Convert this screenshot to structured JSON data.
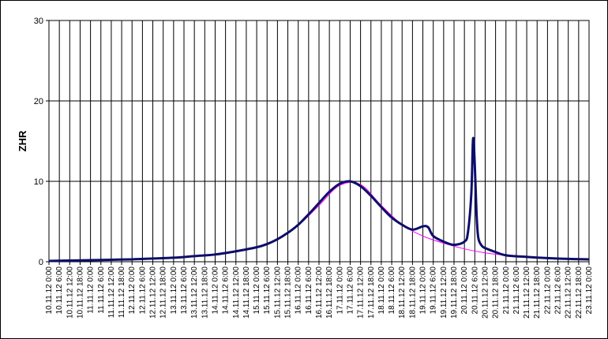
{
  "chart_data": {
    "type": "line",
    "title": "",
    "xlabel": "",
    "ylabel": "ZHR",
    "ylim": [
      0,
      30
    ],
    "yticks": [
      0,
      10,
      20,
      30
    ],
    "grid": true,
    "x_tick_interval_hours": 6,
    "x_ticks": [
      "10.11.12 0:00",
      "10.11.12 6:00",
      "10.11.12 12:00",
      "10.11.12 18:00",
      "11.11.12 0:00",
      "11.11.12 6:00",
      "11.11.12 12:00",
      "11.11.12 18:00",
      "12.11.12 0:00",
      "12.11.12 6:00",
      "12.11.12 12:00",
      "12.11.12 18:00",
      "13.11.12 0:00",
      "13.11.12 6:00",
      "13.11.12 12:00",
      "13.11.12 18:00",
      "14.11.12 0:00",
      "14.11.12 6:00",
      "14.11.12 12:00",
      "14.11.12 18:00",
      "15.11.12 0:00",
      "15.11.12 6:00",
      "15.11.12 12:00",
      "15.11.12 18:00",
      "16.11.12 0:00",
      "16.11.12 6:00",
      "16.11.12 12:00",
      "16.11.12 18:00",
      "17.11.12 0:00",
      "17.11.12 6:00",
      "17.11.12 12:00",
      "17.11.12 18:00",
      "18.11.12 0:00",
      "18.11.12 6:00",
      "18.11.12 12:00",
      "18.11.12 18:00",
      "19.11.12 0:00",
      "19.11.12 6:00",
      "19.11.12 12:00",
      "19.11.12 18:00",
      "20.11.12 0:00",
      "20.11.12 6:00",
      "20.11.12 12:00",
      "20.11.12 18:00",
      "21.11.12 0:00",
      "21.11.12 6:00",
      "21.11.12 12:00",
      "21.11.12 18:00",
      "22.11.12 0:00",
      "22.11.12 6:00",
      "22.11.12 12:00",
      "22.11.12 18:00",
      "23.11.12 0:00"
    ],
    "series": [
      {
        "color": "#0d0d6b",
        "x": [
          "10.11.12 0:00",
          "10.11.12 12:00",
          "11.11.12 0:00",
          "11.11.12 12:00",
          "12.11.12 0:00",
          "12.11.12 12:00",
          "13.11.12 0:00",
          "13.11.12 12:00",
          "14.11.12 0:00",
          "14.11.12 12:00",
          "15.11.12 0:00",
          "15.11.12 6:00",
          "15.11.12 12:00",
          "15.11.12 18:00",
          "16.11.12 0:00",
          "16.11.12 6:00",
          "16.11.12 12:00",
          "16.11.12 18:00",
          "17.11.12 0:00",
          "17.11.12 6:00",
          "17.11.12 12:00",
          "17.11.12 18:00",
          "18.11.12 0:00",
          "18.11.12 6:00",
          "18.11.12 12:00",
          "18.11.12 18:00",
          "19.11.12 0:00",
          "19.11.12 3:00",
          "19.11.12 6:00",
          "19.11.12 12:00",
          "19.11.12 18:00",
          "20.11.12 0:00",
          "20.11.12 2:00",
          "20.11.12 4:00",
          "20.11.12 5:00",
          "20.11.12 6:00",
          "20.11.12 7:00",
          "20.11.12 8:00",
          "20.11.12 10:00",
          "20.11.12 12:00",
          "20.11.12 18:00",
          "21.11.12 0:00",
          "21.11.12 12:00",
          "22.11.12 0:00",
          "22.11.12 12:00",
          "23.11.12 0:00"
        ],
        "y": [
          0.1,
          0.15,
          0.2,
          0.25,
          0.3,
          0.4,
          0.5,
          0.7,
          0.9,
          1.3,
          1.8,
          2.2,
          2.8,
          3.6,
          4.6,
          5.9,
          7.3,
          8.7,
          9.7,
          10.0,
          9.4,
          8.2,
          6.8,
          5.5,
          4.6,
          4.0,
          4.4,
          4.3,
          3.2,
          2.5,
          2.1,
          2.5,
          3.6,
          8.5,
          15.3,
          12.0,
          6.0,
          3.0,
          2.0,
          1.7,
          1.2,
          0.8,
          0.6,
          0.45,
          0.35,
          0.3
        ]
      },
      {
        "color": "#ff00ff",
        "x": [
          "15.11.12 12:00",
          "16.11.12 0:00",
          "16.11.12 12:00",
          "17.11.12 0:00",
          "17.11.12 12:00",
          "18.11.12 0:00",
          "18.11.12 12:00",
          "19.11.12 0:00",
          "19.11.12 12:00",
          "20.11.12 0:00",
          "20.11.12 12:00",
          "21.11.12 0:00",
          "21.11.12 12:00",
          "22.11.12 0:00",
          "22.11.12 12:00",
          "23.11.12 0:00"
        ],
        "y": [
          2.8,
          4.5,
          7.0,
          9.5,
          9.6,
          7.0,
          4.6,
          3.2,
          2.3,
          1.6,
          1.1,
          0.8,
          0.6,
          0.45,
          0.35,
          0.3
        ]
      }
    ]
  }
}
